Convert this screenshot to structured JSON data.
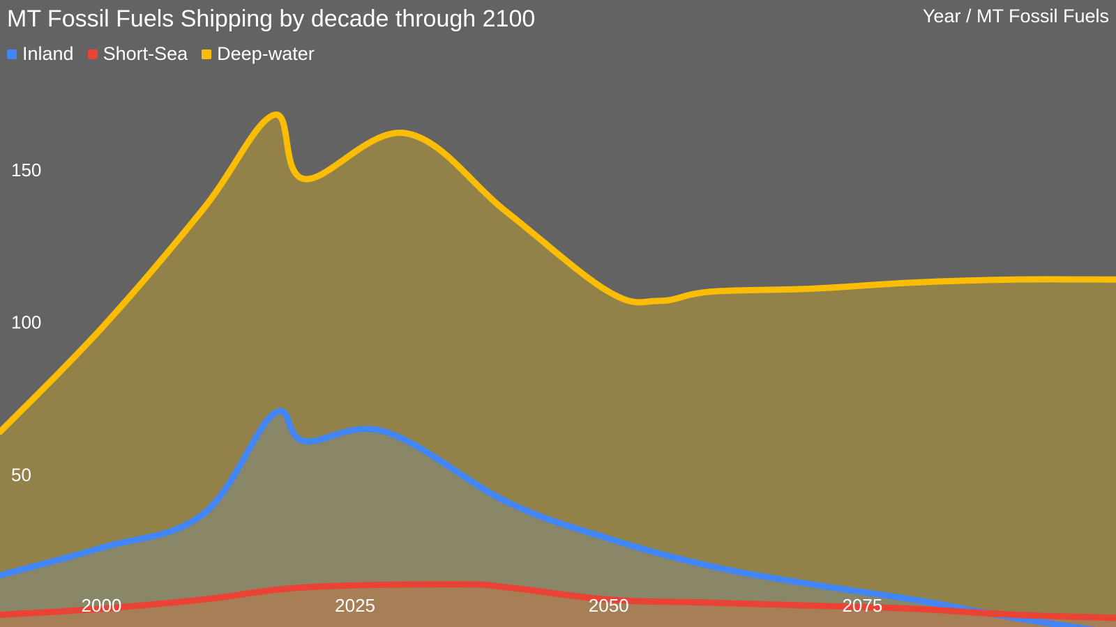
{
  "chart_data": {
    "type": "area",
    "title": "MT Fossil Fuels Shipping by decade through 2100",
    "axis_caption": "Year / MT Fossil Fuels",
    "xlabel": "Year",
    "ylabel": "MT Fossil Fuels",
    "xlim": [
      1990,
      2100
    ],
    "ylim": [
      0,
      200
    ],
    "x_ticks": [
      2000,
      2025,
      2050,
      2075
    ],
    "y_ticks": [
      50,
      100,
      150
    ],
    "grid": false,
    "legend_position": "top-left",
    "series": [
      {
        "name": "Inland",
        "color": "#4285f4",
        "fill": "#8a8668",
        "x": [
          1990,
          2000,
          2010,
          2017,
          2020,
          2028,
          2040,
          2050,
          2060,
          2070,
          2080,
          2090,
          2100
        ],
        "values": [
          17,
          26,
          37,
          70,
          61,
          64,
          41,
          29,
          20,
          14,
          9,
          3,
          -2
        ]
      },
      {
        "name": "Short-Sea",
        "color": "#ea4335",
        "fill": "#a77f57",
        "x": [
          1990,
          2000,
          2010,
          2020,
          2035,
          2040,
          2050,
          2060,
          2070,
          2080,
          2090,
          2100
        ],
        "values": [
          4,
          6,
          9,
          13,
          14,
          13,
          9,
          8,
          7,
          6,
          4,
          3
        ]
      },
      {
        "name": "Deep-water",
        "color": "#fbbc04",
        "fill": "#928148",
        "x": [
          1990,
          2000,
          2010,
          2017,
          2020,
          2030,
          2040,
          2050,
          2055,
          2060,
          2070,
          2080,
          2090,
          2100
        ],
        "values": [
          64,
          98,
          137,
          168,
          147,
          162,
          136,
          110,
          107,
          110,
          111,
          113,
          114,
          114
        ]
      }
    ]
  }
}
